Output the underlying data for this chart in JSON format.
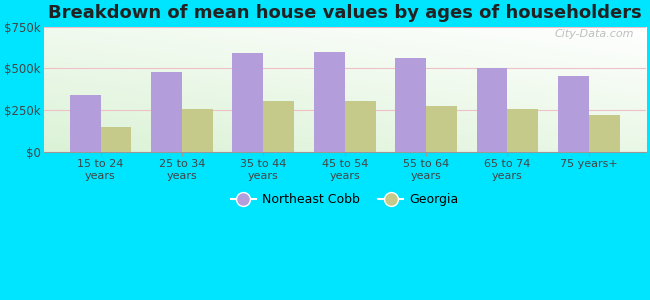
{
  "title": "Breakdown of mean house values by ages of householders",
  "categories": [
    "15 to 24\nyears",
    "25 to 34\nyears",
    "35 to 44\nyears",
    "45 to 54\nyears",
    "55 to 64\nyears",
    "65 to 74\nyears",
    "75 years+"
  ],
  "northeast_cobb": [
    340000,
    480000,
    590000,
    600000,
    560000,
    500000,
    455000
  ],
  "georgia": [
    150000,
    255000,
    305000,
    305000,
    275000,
    255000,
    220000
  ],
  "northeast_cobb_color": "#b39ddb",
  "georgia_color": "#c5c98a",
  "figure_bg_color": "#00e5ff",
  "title_fontsize": 13,
  "ylim": [
    0,
    750000
  ],
  "yticks": [
    0,
    250000,
    500000,
    750000
  ],
  "ytick_labels": [
    "$0",
    "$250k",
    "$500k",
    "$750k"
  ],
  "bar_width": 0.38,
  "legend_labels": [
    "Northeast Cobb",
    "Georgia"
  ],
  "watermark": "City-Data.com"
}
